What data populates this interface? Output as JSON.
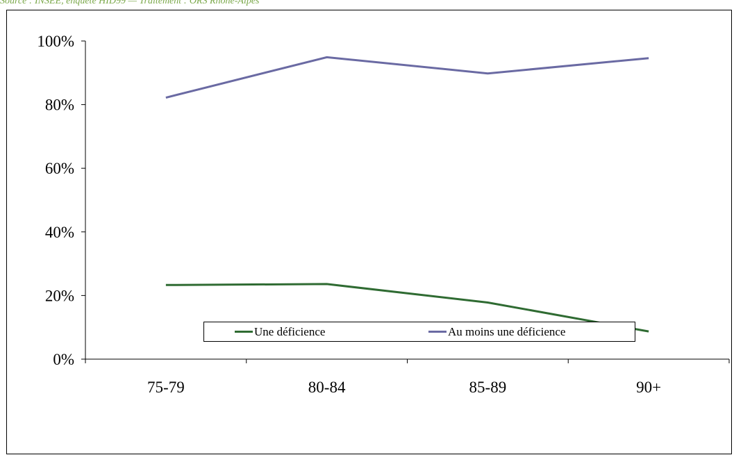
{
  "source_note": "Source : INSEE, enquête HID99 — Traitement : ORS Rhône-Alpes",
  "colors": {
    "une_deficience": "#2f6b32",
    "au_moins_une_deficience": "#6a6aa3",
    "axis": "#000000"
  },
  "chart_data": {
    "type": "line",
    "categories": [
      "75-79",
      "80-84",
      "85-89",
      "90+"
    ],
    "series": [
      {
        "name": "Une déficience",
        "values": [
          23.3,
          23.6,
          17.8,
          8.7
        ]
      },
      {
        "name": "Au moins une déficience",
        "values": [
          82.2,
          94.9,
          89.8,
          94.6
        ]
      }
    ],
    "ylim": [
      0,
      100
    ],
    "y_ticks": [
      0,
      20,
      40,
      60,
      80,
      100
    ],
    "y_tick_labels": [
      "0%",
      "20%",
      "40%",
      "60%",
      "80%",
      "100%"
    ],
    "grid": false,
    "legend_position": "bottom"
  }
}
